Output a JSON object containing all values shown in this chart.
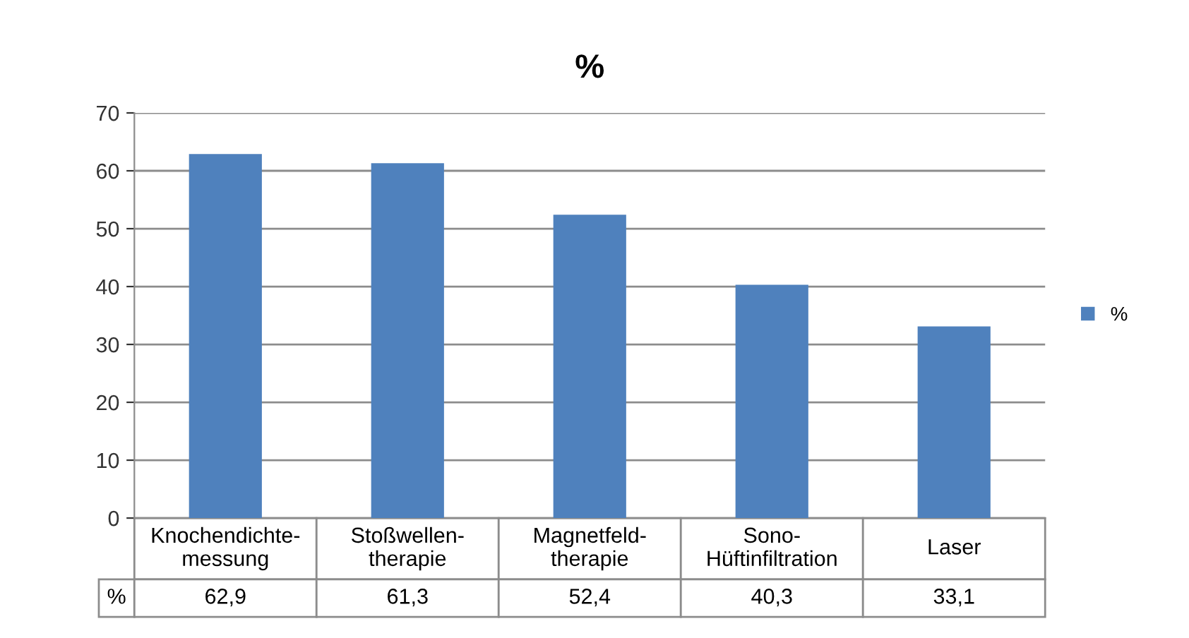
{
  "chart_data": {
    "type": "bar",
    "title": "%",
    "categories": [
      "Knochendichte-\nmessung",
      "Stoßwellen-\ntherapie",
      "Magnetfeld-\ntherapie",
      "Sono-\nHüftinfiltration",
      "Laser"
    ],
    "series": [
      {
        "name": "%",
        "color": "#4f81bd",
        "values": [
          62.9,
          61.3,
          52.4,
          40.3,
          33.1
        ],
        "value_labels": [
          "62,9",
          "61,3",
          "52,4",
          "40,3",
          "33,1"
        ]
      }
    ],
    "ylim": [
      0,
      70
    ],
    "yticks": [
      0,
      10,
      20,
      30,
      40,
      50,
      60,
      70
    ],
    "grid": "y",
    "legend": "right"
  }
}
